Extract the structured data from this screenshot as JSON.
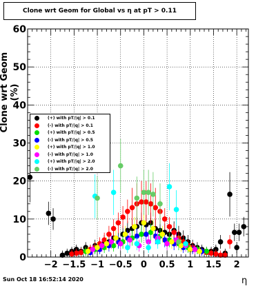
{
  "title": "Clone wrt Geom for Global vs   η at pT > 0.11",
  "footer": "Sun Oct 18 16:52:14 2020",
  "chart_data": {
    "type": "scatter",
    "title": "Clone wrt Geom for Global vs   η at pT > 0.11",
    "xlabel": "η",
    "ylabel": "Clone wrt Geom (%)",
    "xlim": [
      -2.5,
      2.25
    ],
    "ylim": [
      0,
      60
    ],
    "xticks": [
      -2,
      -1.5,
      -1,
      -0.5,
      0,
      0.5,
      1,
      1.5,
      2
    ],
    "xtick_labels": [
      "−2",
      "−1.5",
      "−1",
      "−0.5",
      "0",
      "0.5",
      "1",
      "1.5",
      "2"
    ],
    "yticks": [
      0,
      10,
      20,
      30,
      40,
      50,
      60
    ],
    "ytick_labels": [
      "0",
      "10",
      "20",
      "30",
      "40",
      "50",
      "60"
    ],
    "grid": true,
    "legend_position": "left-middle",
    "series": [
      {
        "name": "(+) with pT/|q| > 0.1",
        "color": "#000000",
        "x": [
          -2.45,
          -2.05,
          -1.95,
          -1.75,
          -1.65,
          -1.55,
          -1.45,
          -1.35,
          -1.25,
          -1.15,
          -1.05,
          -0.95,
          -0.85,
          -0.75,
          -0.65,
          -0.55,
          -0.45,
          -0.35,
          -0.25,
          -0.15,
          -0.05,
          0.05,
          0.15,
          0.25,
          0.35,
          0.45,
          0.55,
          0.65,
          0.75,
          0.85,
          0.95,
          1.05,
          1.15,
          1.25,
          1.35,
          1.45,
          1.55,
          1.65,
          1.75,
          1.85,
          1.95,
          2.0,
          2.05,
          2.15
        ],
        "y": [
          21,
          11.5,
          10,
          0.5,
          1.0,
          1.5,
          2,
          1.5,
          2.5,
          2,
          3,
          3,
          4,
          4,
          5,
          4.5,
          6,
          7,
          7.5,
          8,
          9,
          8.5,
          9,
          7.5,
          7,
          6.5,
          6,
          7,
          6,
          5,
          4,
          3,
          2.5,
          2,
          1.5,
          1.5,
          2,
          4,
          1,
          16.5,
          6.5,
          2.5,
          6.5,
          8
        ]
      },
      {
        "name": "(-) with pT/|q| > 0.1",
        "color": "#ff0000",
        "x": [
          -1.55,
          -1.45,
          -1.35,
          -1.25,
          -1.15,
          -1.05,
          -0.95,
          -0.85,
          -0.75,
          -0.65,
          -0.55,
          -0.45,
          -0.35,
          -0.25,
          -0.15,
          -0.05,
          0.05,
          0.15,
          0.25,
          0.35,
          0.45,
          0.55,
          0.65,
          0.75,
          0.85,
          0.95,
          1.05,
          1.15,
          1.25,
          1.35,
          1.45,
          1.55,
          1.65,
          1.75,
          1.85
        ],
        "y": [
          0.8,
          1.0,
          1.2,
          1.5,
          2.0,
          2.5,
          3.5,
          4.5,
          6,
          7.5,
          9,
          10.5,
          12,
          13,
          14,
          14.5,
          14.5,
          14,
          13,
          12,
          10,
          8,
          6.5,
          5,
          4,
          3,
          2.5,
          2,
          1.5,
          1.2,
          1,
          0.8,
          0.5,
          0.5,
          4
        ]
      },
      {
        "name": "(+) with pT/|q| > 0.5",
        "color": "#00dd00",
        "x": [
          -1.25,
          -1.05,
          -0.85,
          -0.65,
          -0.45,
          -0.25,
          -0.05,
          0.15,
          0.35,
          0.55,
          0.75,
          0.95,
          1.15,
          1.35
        ],
        "y": [
          1.5,
          2,
          2.5,
          3,
          4,
          5,
          6,
          6.5,
          5.5,
          4.5,
          3.5,
          2.5,
          2,
          1.5
        ]
      },
      {
        "name": "(-) with pT/|q| > 0.5",
        "color": "#0000ff",
        "x": [
          -1.15,
          -0.95,
          -0.75,
          -0.55,
          -0.35,
          -0.15,
          0.05,
          0.25,
          0.45,
          0.65,
          0.85,
          1.05,
          1.25
        ],
        "y": [
          1.2,
          2,
          3,
          4,
          5,
          5.5,
          6,
          5.5,
          4.5,
          3.5,
          2.5,
          2,
          1.5
        ]
      },
      {
        "name": "(+) with pT/|q| > 1.0",
        "color": "#ffff00",
        "x": [
          -1.2,
          -1.0,
          -0.8,
          -0.6,
          -0.4,
          -0.2,
          0.0,
          0.2,
          0.4,
          0.6,
          0.8,
          1.0,
          1.2
        ],
        "y": [
          1.5,
          2.5,
          3.5,
          5,
          6,
          8,
          9,
          7.5,
          6,
          4,
          3,
          2,
          1.5
        ]
      },
      {
        "name": "(-) with pT/|q| > 1.0",
        "color": "#ff00ff",
        "x": [
          -1.1,
          -0.9,
          -0.7,
          -0.5,
          -0.3,
          -0.1,
          0.1,
          0.3,
          0.5,
          0.7,
          0.9,
          1.1
        ],
        "y": [
          2,
          3,
          4,
          3.5,
          4.5,
          3,
          4,
          5,
          3.5,
          4.5,
          3,
          2
        ]
      },
      {
        "name": "(+) with pT/|q| > 2.0",
        "color": "#00ffff",
        "x": [
          -1.05,
          -0.65,
          -0.35,
          -0.15,
          0.1,
          0.3,
          0.55,
          0.7,
          0.9
        ],
        "y": [
          16,
          17,
          2.5,
          3.5,
          2.5,
          4,
          18.5,
          12.5,
          3.5
        ]
      },
      {
        "name": "(-) with pT/|q| > 2.0",
        "color": "#66cc66",
        "x": [
          -1.0,
          -0.5,
          -0.15,
          0.0,
          0.1,
          0.2,
          0.35,
          0.75
        ],
        "y": [
          15.5,
          24,
          15.5,
          17,
          17,
          16.5,
          14,
          4
        ]
      }
    ]
  }
}
